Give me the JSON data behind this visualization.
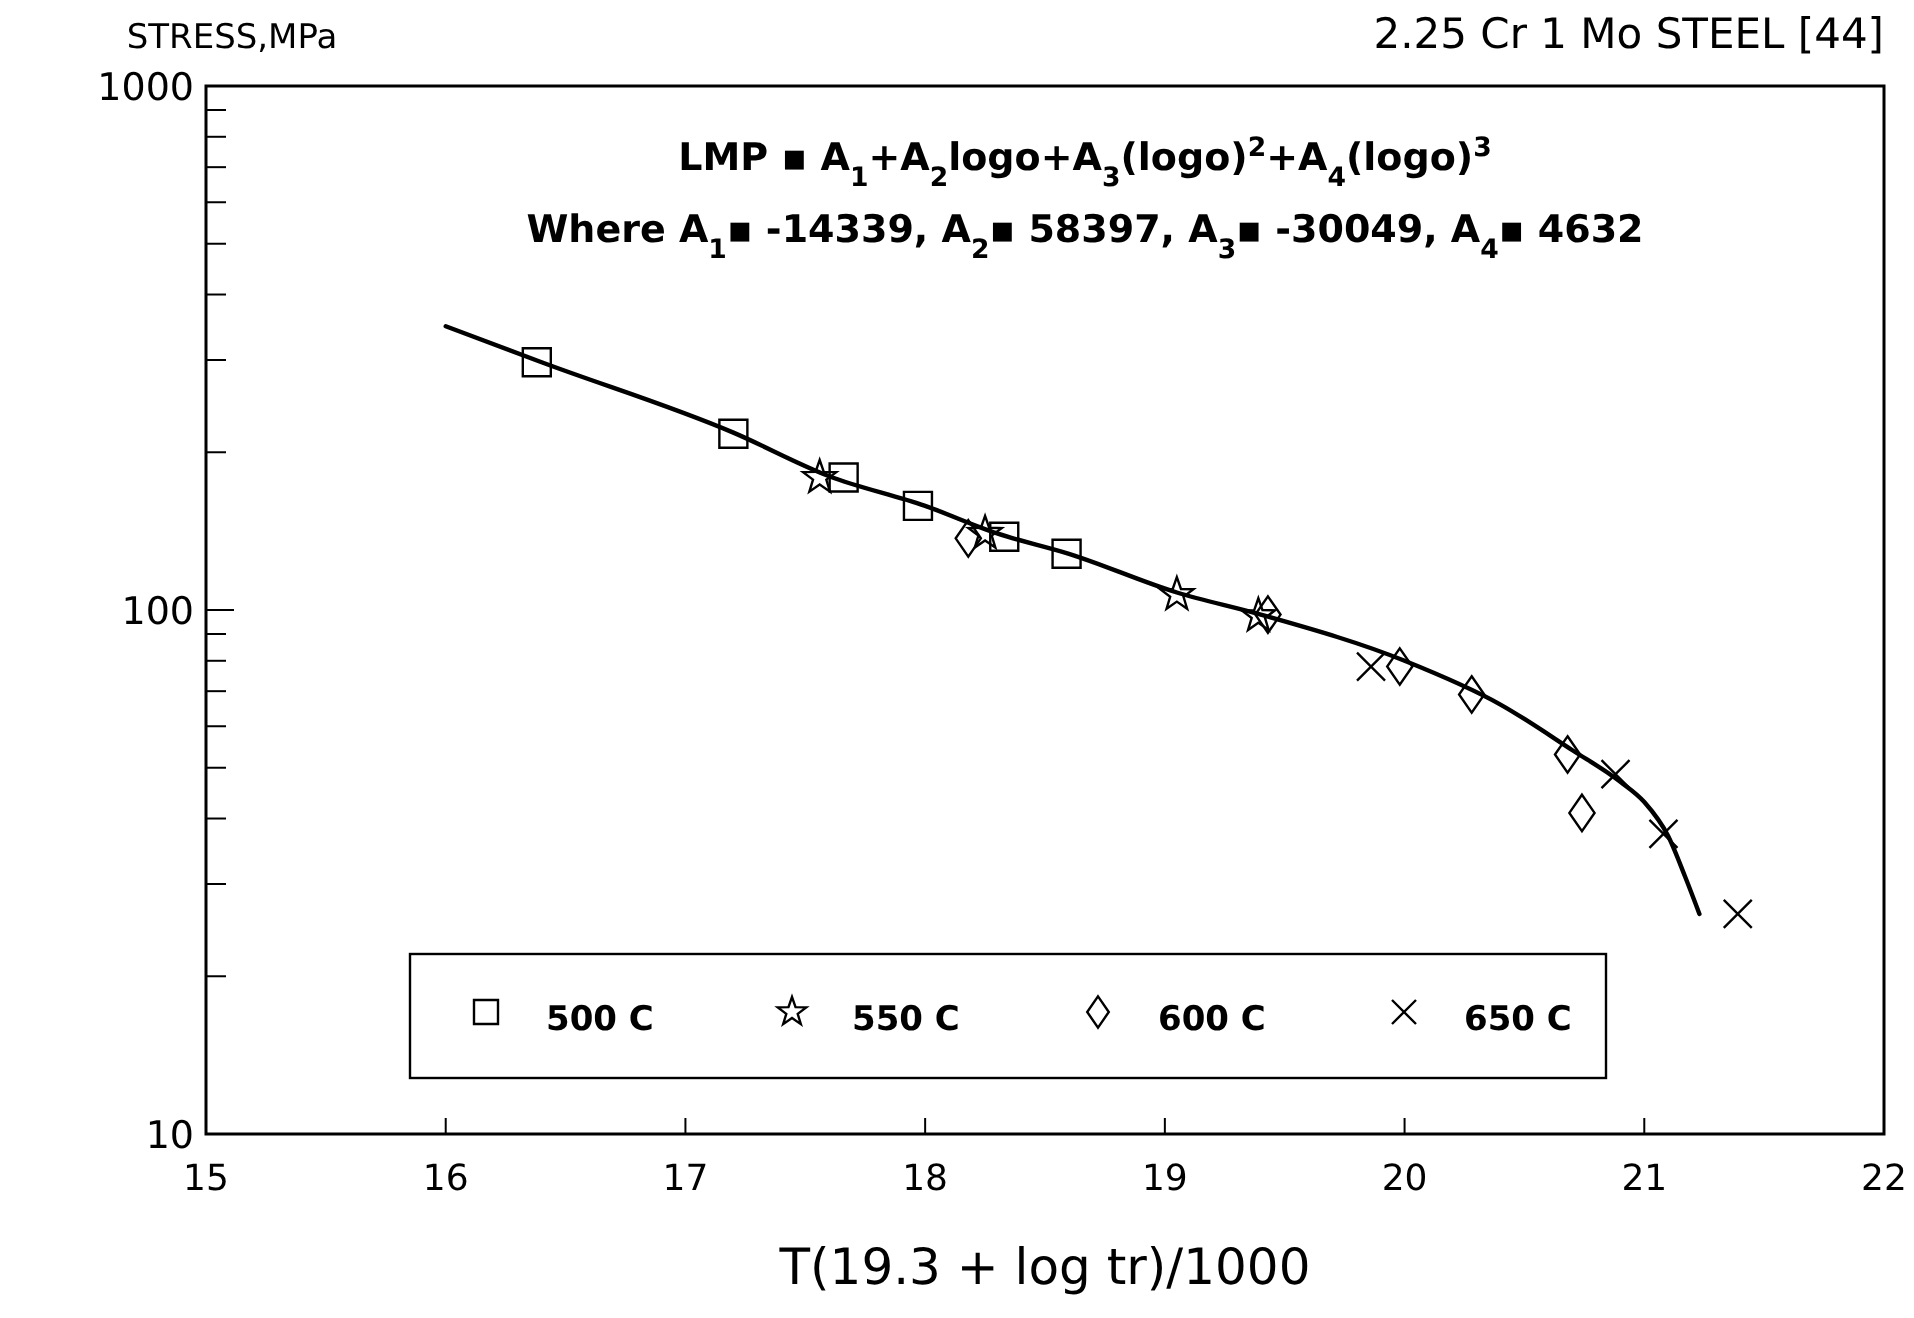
{
  "chart_data": {
    "type": "scatter",
    "title": "2.25 Cr 1 Mo STEEL [44]",
    "ylabel": "STRESS,MPa",
    "xlabel": "T(19.3 + log tr)/1000",
    "annotations": [
      "LMP ▪ A$_{1}$+A$_{2}$logo+A$_{3}$(logo)$^{2}$+A$_{4}$(logo)$^{3}$",
      "Where A$_{1}$▪ -14339, A$_{2}$▪ 58397, A$_{3}$▪ -30049, A$_{4}$▪ 4632"
    ],
    "log": "y",
    "xlim": [
      15,
      22
    ],
    "xticks": [
      15,
      16,
      17,
      18,
      19,
      20,
      21,
      22
    ],
    "ylim": [
      10,
      1000
    ],
    "yticks": [
      10,
      {
        "value": 20,
        "label": null
      },
      {
        "value": 30,
        "label": null
      },
      {
        "value": 40,
        "label": null
      },
      {
        "value": 50,
        "label": null
      },
      {
        "value": 60,
        "label": null
      },
      {
        "value": 70,
        "label": null
      },
      {
        "value": 80,
        "label": null
      },
      {
        "value": 90,
        "label": null
      },
      100,
      {
        "value": 200,
        "label": null
      },
      {
        "value": 300,
        "label": null
      },
      {
        "value": 400,
        "label": null
      },
      {
        "value": 500,
        "label": null
      },
      {
        "value": 600,
        "label": null
      },
      {
        "value": 700,
        "label": null
      },
      {
        "value": 800,
        "label": null
      },
      {
        "value": 900,
        "label": null
      },
      1000
    ],
    "grid": false,
    "legend": "bottom",
    "series": [
      {
        "name": "500 C",
        "color": "#000000",
        "marker": "square",
        "x": [
          16.38,
          17.2,
          17.66,
          17.97,
          18.33,
          18.59
        ],
        "values": [
          297,
          217,
          179,
          158,
          138,
          128
        ]
      },
      {
        "name": "550 C",
        "color": "#000000",
        "marker": "star",
        "x": [
          17.56,
          18.25,
          19.05,
          19.39
        ],
        "values": [
          179,
          140,
          107,
          97.5
        ]
      },
      {
        "name": "600 C",
        "color": "#000000",
        "marker": "diamond",
        "x": [
          18.18,
          19.43,
          19.98,
          20.28,
          20.68,
          20.74
        ],
        "values": [
          137,
          98,
          78,
          69,
          53,
          41
        ]
      },
      {
        "name": "650 C",
        "color": "#000000",
        "marker": "cross",
        "x": [
          19.86,
          20.88,
          21.08,
          21.39
        ],
        "values": [
          78,
          48.6,
          37.4,
          26.3
        ]
      },
      {
        "type": "line",
        "color": "#000000",
        "marker": "none",
        "x": [
          16.0,
          16.4,
          17.2,
          17.6,
          18.0,
          18.3,
          18.6,
          19.05,
          19.4,
          20.0,
          20.4,
          20.7,
          20.9,
          21.0,
          21.1,
          21.17,
          21.23
        ],
        "values": [
          348,
          297,
          218,
          180,
          158,
          140,
          128,
          108,
          98,
          80,
          66,
          54,
          47,
          43,
          37,
          31,
          26.3
        ]
      }
    ]
  }
}
